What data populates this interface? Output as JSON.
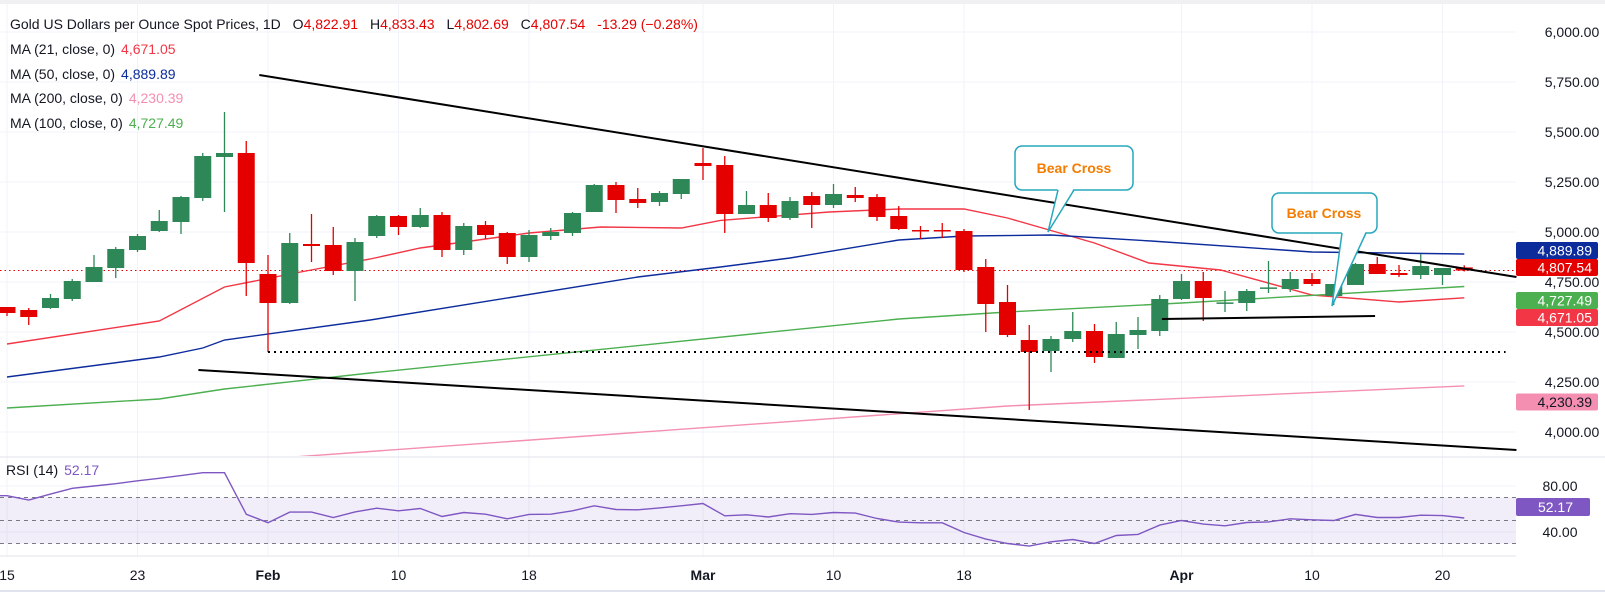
{
  "header": {
    "title": "Gold US Dollars per Ounce Spot Prices, 1D",
    "open_label": "O",
    "open": "4,822.91",
    "high_label": "H",
    "high": "4,833.43",
    "low_label": "L",
    "low": "4,802.69",
    "close_label": "C",
    "close": "4,807.54",
    "change": "-13.29 (−0.28%)"
  },
  "indicators": [
    {
      "label": "MA (21, close, 0)",
      "value": "4,671.05",
      "color": "#f23645"
    },
    {
      "label": "MA (50, close, 0)",
      "value": "4,889.89",
      "color": "#0d2c9c"
    },
    {
      "label": "MA (200, close, 0)",
      "value": "4,230.39",
      "color": "#f48fb1"
    },
    {
      "label": "MA (100, close, 0)",
      "value": "4,727.49",
      "color": "#4caf50"
    }
  ],
  "rsi_legend": {
    "label": "RSI (14)",
    "value": "52.17"
  },
  "price_tags": [
    {
      "value": "4,889.89",
      "bg": "#0d2c9c",
      "fg": "#ffffff",
      "price": 4889.89
    },
    {
      "value": "4,807.54",
      "bg": "#e50000",
      "fg": "#ffffff",
      "price": 4807.54
    },
    {
      "value": "4,727.49",
      "bg": "#4caf50",
      "fg": "#ffffff",
      "price": 4727.49
    },
    {
      "value": "4,671.05",
      "bg": "#f23645",
      "fg": "#ffffff",
      "price": 4671.05
    },
    {
      "value": "4,230.39",
      "bg": "#f48fb1",
      "fg": "#131722",
      "price": 4230.39
    }
  ],
  "rsi_tag": {
    "value": "52.17",
    "bg": "#7e57c2"
  },
  "annotations": {
    "bear_cross_1": "Bear Cross",
    "bear_cross_2": "Bear Cross"
  },
  "colors": {
    "up": "#2e8756",
    "down": "#e50000",
    "rsi": "#7e57c2"
  },
  "chart_data": {
    "type": "candlestick",
    "title": "Gold US Dollars per Ounce Spot Prices, 1D",
    "ylim": [
      3800,
      6080
    ],
    "y_ticks": [
      {
        "value": 6000,
        "label": "6,000.00"
      },
      {
        "value": 5750,
        "label": "5,750.00"
      },
      {
        "value": 5500,
        "label": "5,500.00"
      },
      {
        "value": 5250,
        "label": "5,250.00"
      },
      {
        "value": 5000,
        "label": "5,000.00"
      },
      {
        "value": 4750,
        "label": "4,750.00"
      },
      {
        "value": 4500,
        "label": "4,500.00"
      },
      {
        "value": 4250,
        "label": "4,250.00"
      },
      {
        "value": 4000,
        "label": "4,000.00"
      }
    ],
    "x_ticks": [
      {
        "label": "15",
        "index": 0
      },
      {
        "label": "23",
        "index": 6
      },
      {
        "label": "Feb",
        "index": 12,
        "month": true
      },
      {
        "label": "10",
        "index": 18
      },
      {
        "label": "18",
        "index": 24
      },
      {
        "label": "Mar",
        "index": 32,
        "month": true
      },
      {
        "label": "10",
        "index": 38
      },
      {
        "label": "18",
        "index": 44
      },
      {
        "label": "Apr",
        "index": 54,
        "month": true
      },
      {
        "label": "10",
        "index": 60
      },
      {
        "label": "20",
        "index": 66
      }
    ],
    "candles_ohlc": [
      [
        4625,
        4625,
        4580,
        4595
      ],
      [
        4610,
        4620,
        4535,
        4575
      ],
      [
        4620,
        4690,
        4615,
        4670
      ],
      [
        4665,
        4765,
        4655,
        4755
      ],
      [
        4750,
        4885,
        4750,
        4825
      ],
      [
        4820,
        4925,
        4770,
        4915
      ],
      [
        4910,
        4990,
        4900,
        4980
      ],
      [
        5005,
        5110,
        5000,
        5055
      ],
      [
        5050,
        5180,
        4990,
        5175
      ],
      [
        5170,
        5395,
        5155,
        5380
      ],
      [
        5375,
        5600,
        5100,
        5395
      ],
      [
        5395,
        5455,
        4680,
        4845
      ],
      [
        4790,
        4885,
        4400,
        4645
      ],
      [
        4645,
        4995,
        4640,
        4945
      ],
      [
        4940,
        5090,
        4850,
        4930
      ],
      [
        4935,
        5025,
        4785,
        4805
      ],
      [
        4805,
        4970,
        4655,
        4950
      ],
      [
        4980,
        5085,
        4970,
        5080
      ],
      [
        5080,
        5085,
        4985,
        5025
      ],
      [
        5025,
        5120,
        5020,
        5085
      ],
      [
        5085,
        5100,
        4875,
        4910
      ],
      [
        4910,
        5045,
        4885,
        5030
      ],
      [
        5035,
        5055,
        4965,
        4985
      ],
      [
        4995,
        5000,
        4840,
        4875
      ],
      [
        4875,
        5010,
        4850,
        4985
      ],
      [
        4980,
        5020,
        4960,
        5000
      ],
      [
        4995,
        5100,
        4980,
        5095
      ],
      [
        5100,
        5240,
        5100,
        5235
      ],
      [
        5235,
        5250,
        5095,
        5160
      ],
      [
        5165,
        5220,
        5120,
        5145
      ],
      [
        5150,
        5205,
        5130,
        5195
      ],
      [
        5190,
        5265,
        5165,
        5265
      ],
      [
        5345,
        5420,
        5260,
        5330
      ],
      [
        5335,
        5380,
        4995,
        5090
      ],
      [
        5090,
        5205,
        5090,
        5135
      ],
      [
        5135,
        5195,
        5050,
        5070
      ],
      [
        5070,
        5175,
        5060,
        5155
      ],
      [
        5180,
        5200,
        5020,
        5135
      ],
      [
        5135,
        5240,
        5120,
        5190
      ],
      [
        5185,
        5225,
        5150,
        5170
      ],
      [
        5175,
        5190,
        5055,
        5075
      ],
      [
        5080,
        5130,
        5010,
        5015
      ],
      [
        5010,
        5030,
        4965,
        5005
      ],
      [
        5010,
        5045,
        4970,
        5005
      ],
      [
        5005,
        5015,
        4800,
        4810
      ],
      [
        4825,
        4865,
        4500,
        4640
      ],
      [
        4650,
        4735,
        4475,
        4485
      ],
      [
        4460,
        4535,
        4110,
        4400
      ],
      [
        4405,
        4480,
        4300,
        4465
      ],
      [
        4465,
        4600,
        4450,
        4505
      ],
      [
        4505,
        4540,
        4345,
        4375
      ],
      [
        4370,
        4550,
        4370,
        4490
      ],
      [
        4485,
        4575,
        4415,
        4510
      ],
      [
        4505,
        4685,
        4480,
        4665
      ],
      [
        4665,
        4790,
        4660,
        4755
      ],
      [
        4755,
        4800,
        4555,
        4670
      ],
      [
        4643,
        4705,
        4600,
        4648
      ],
      [
        4645,
        4715,
        4605,
        4705
      ],
      [
        4718,
        4855,
        4695,
        4723
      ],
      [
        4715,
        4800,
        4700,
        4765
      ],
      [
        4765,
        4795,
        4730,
        4740
      ],
      [
        4680,
        4740,
        4635,
        4740
      ],
      [
        4735,
        4845,
        4735,
        4840
      ],
      [
        4840,
        4875,
        4790,
        4790
      ],
      [
        4795,
        4835,
        4775,
        4785
      ],
      [
        4785,
        4890,
        4765,
        4830
      ],
      [
        4785,
        4820,
        4735,
        4820
      ],
      [
        4822.91,
        4833.43,
        4802.69,
        4807.54
      ]
    ],
    "moving_averages": [
      {
        "name": "MA (21, close, 0)",
        "color": "#f23645",
        "points": [
          [
            0,
            4440
          ],
          [
            7,
            4555
          ],
          [
            10,
            4725
          ],
          [
            13.5,
            4800
          ],
          [
            16.7,
            4865
          ],
          [
            19,
            4920
          ],
          [
            24,
            4995
          ],
          [
            27.3,
            5025
          ],
          [
            31,
            5020
          ],
          [
            32.8,
            5058
          ],
          [
            37.8,
            5100
          ],
          [
            41,
            5115
          ],
          [
            44,
            5115
          ],
          [
            46,
            5070
          ],
          [
            50,
            4945
          ],
          [
            52.5,
            4845
          ],
          [
            55.8,
            4810
          ],
          [
            60,
            4685
          ],
          [
            64,
            4650
          ],
          [
            67,
            4671.05
          ]
        ]
      },
      {
        "name": "MA (50, close, 0)",
        "color": "#0d2c9c",
        "points": [
          [
            0,
            4275
          ],
          [
            7,
            4375
          ],
          [
            9,
            4420
          ],
          [
            10,
            4460
          ],
          [
            16.7,
            4560
          ],
          [
            29,
            4775
          ],
          [
            32.8,
            4825
          ],
          [
            36,
            4870
          ],
          [
            41,
            4960
          ],
          [
            44,
            4980
          ],
          [
            48,
            4985
          ],
          [
            52.6,
            4955
          ],
          [
            60,
            4900
          ],
          [
            67,
            4889.89
          ]
        ]
      },
      {
        "name": "MA (100, close, 0)",
        "color": "#4caf50",
        "points": [
          [
            0,
            4120
          ],
          [
            7,
            4165
          ],
          [
            10,
            4215
          ],
          [
            16.7,
            4295
          ],
          [
            41,
            4565
          ],
          [
            46,
            4600
          ],
          [
            54,
            4645
          ],
          [
            67,
            4727.49
          ]
        ]
      },
      {
        "name": "MA (200, close, 0)",
        "color": "#f48fb1",
        "points": [
          [
            10,
            3850
          ],
          [
            17,
            3905
          ],
          [
            46,
            4130
          ],
          [
            67,
            4230.39
          ]
        ]
      }
    ],
    "last_price": 4807.54,
    "trendlines": [
      {
        "name": "upper-trendline",
        "from": [
          11.6,
          5785
        ],
        "to": [
          69.4,
          4775
        ],
        "style": "solid"
      },
      {
        "name": "lower-trendline",
        "from": [
          8.8,
          4310
        ],
        "to": [
          69.4,
          3910
        ],
        "style": "solid"
      },
      {
        "name": "support-dotted-line",
        "from": [
          12,
          4400
        ],
        "to": [
          68.9,
          4400
        ],
        "style": "dotted"
      },
      {
        "name": "support-solid-line",
        "from": [
          53.1,
          4565
        ],
        "to": [
          62.9,
          4580
        ],
        "style": "solid"
      }
    ],
    "rsi": {
      "label": "RSI (14)",
      "ylim": [
        20,
        100
      ],
      "y_ticks": [
        {
          "value": 80,
          "label": "80.00"
        },
        {
          "value": 40,
          "label": "40.00"
        }
      ],
      "bands": [
        70,
        50,
        30
      ],
      "values": [
        71.6,
        67.8,
        73,
        78,
        80,
        82,
        84.5,
        86.7,
        89,
        91.6,
        91.6,
        55.4,
        48.1,
        57.3,
        57.3,
        52.6,
        57.5,
        60.7,
        58.4,
        60.4,
        53.5,
        57,
        55.5,
        51.5,
        55.3,
        55.5,
        58.4,
        62.8,
        59.6,
        59.3,
        61,
        62.8,
        64.8,
        54.1,
        55,
        53,
        55.9,
        55.3,
        57,
        56.4,
        51.7,
        48.6,
        48,
        48,
        39.6,
        33.8,
        30,
        27.7,
        31.5,
        33.5,
        30,
        37,
        37.9,
        46,
        50,
        46.9,
        45.4,
        48.3,
        48.8,
        51.5,
        50.6,
        50,
        55.3,
        52.6,
        52.6,
        54.6,
        54.3,
        52.17
      ]
    }
  }
}
